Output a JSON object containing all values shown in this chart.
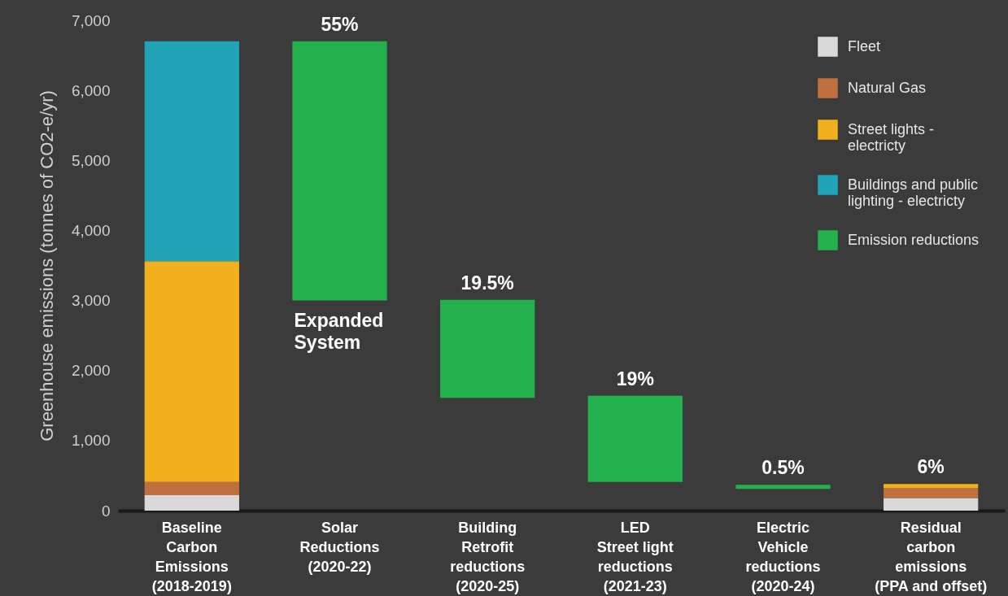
{
  "chart_data": {
    "type": "bar",
    "stacked": true,
    "ylabel": "Greenhouse emissions (tonnes of CO2-e/yr)",
    "categories": [
      "Baseline\nCarbon\nEmissions\n(2018-2019)",
      "Solar\nReductions\n(2020-22)",
      "Building\nRetrofit\nreductions\n(2020-25)",
      "LED\nStreet light\nreductions\n(2021-23)",
      "Electric\nVehicle\nreductions\n(2020-24)",
      "Residual\ncarbon\nemissions\n(PPA and offset)"
    ],
    "series": [
      {
        "name": "Fleet",
        "color": "#d9d9d9",
        "values": [
          220,
          null,
          null,
          null,
          null,
          180
        ]
      },
      {
        "name": "Natural Gas",
        "color": "#c0703f",
        "values": [
          190,
          null,
          null,
          null,
          null,
          140
        ]
      },
      {
        "name": "Street lights - electricty",
        "color": "#f2b01e",
        "values": [
          3150,
          null,
          null,
          null,
          null,
          60
        ]
      },
      {
        "name": "Buildings and public lighting - electricty",
        "color": "#21a3b8",
        "values": [
          3140,
          null,
          null,
          null,
          null,
          null
        ]
      },
      {
        "name": "Emission reductions",
        "color": "#22b14c",
        "values": [
          null,
          3700,
          1400,
          1230,
          60,
          null
        ],
        "base": [
          null,
          3000,
          1610,
          410,
          310,
          null
        ]
      }
    ],
    "ylim": [
      0,
      7000
    ],
    "yticks": [
      0,
      {
        "value": 1000,
        "label": "1,000"
      },
      {
        "value": 2000,
        "label": "2,000"
      },
      {
        "value": 3000,
        "label": "3,000"
      },
      {
        "value": 4000,
        "label": "4,000"
      },
      {
        "value": 5000,
        "label": "5,000"
      },
      {
        "value": 6000,
        "label": "6,000"
      },
      {
        "value": 7000,
        "label": "7,000"
      }
    ],
    "grid": false,
    "legend": "top right",
    "annotations": [
      {
        "text": "55%",
        "x": "Solar\nReductions\n(2020-22)",
        "y": 6700
      },
      {
        "text": "Expanded System",
        "x": "Solar\nReductions\n(2020-22)",
        "y": 3000
      },
      {
        "text": "19.5%",
        "x": "Building\nRetrofit\nreductions\n(2020-25)",
        "y": 3010
      },
      {
        "text": "19%",
        "x": "LED\nStreet light\nreductions\n(2021-23)",
        "y": 1640
      },
      {
        "text": "0.5%",
        "x": "Electric\nVehicle\nreductions\n(2020-24)",
        "y": 370
      },
      {
        "text": "6%",
        "x": "Residual\ncarbon\nemissions\n(PPA and offset)",
        "y": 380
      }
    ]
  }
}
